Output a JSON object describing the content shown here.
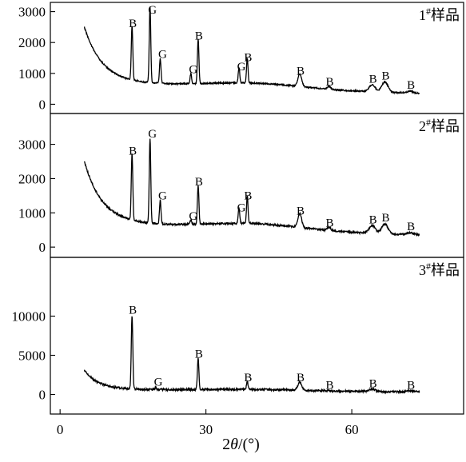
{
  "chart_data": {
    "type": "line",
    "x_axis": {
      "label_parts": [
        "2",
        "θ",
        "/(°)"
      ],
      "min": -2,
      "max": 83,
      "ticks": [
        0,
        30,
        60
      ],
      "tick_labels": [
        "0",
        "30",
        "60"
      ]
    },
    "panels": [
      {
        "sample_label": "1#样品",
        "ylim": [
          -300,
          3300
        ],
        "yticks": [
          0,
          1000,
          2000,
          3000
        ],
        "ytick_labels": [
          "0",
          "1000",
          "2000",
          "3000"
        ],
        "baseline": {
          "start_x": 5,
          "start_y": 2450,
          "end_x": 74,
          "end_y": 200,
          "floor": 700,
          "decay": 0.28
        },
        "peaks": [
          {
            "x": 14.8,
            "y": 2450,
            "label": "B"
          },
          {
            "x": 18.5,
            "y": 3150,
            "label": "G"
          },
          {
            "x": 20.6,
            "y": 1450,
            "label": "G"
          },
          {
            "x": 26.9,
            "y": 950,
            "label": "G"
          },
          {
            "x": 28.4,
            "y": 2050,
            "label": "B"
          },
          {
            "x": 36.8,
            "y": 1050,
            "label": "G"
          },
          {
            "x": 38.5,
            "y": 1350,
            "label": "B"
          },
          {
            "x": 49.3,
            "y": 900,
            "label": "B"
          },
          {
            "x": 55.3,
            "y": 550,
            "label": "B"
          },
          {
            "x": 64.2,
            "y": 650,
            "label": "B"
          },
          {
            "x": 66.8,
            "y": 750,
            "label": "B"
          },
          {
            "x": 72.0,
            "y": 450,
            "label": "B"
          }
        ]
      },
      {
        "sample_label": "2#样品",
        "ylim": [
          -300,
          3900
        ],
        "yticks": [
          0,
          1000,
          2000,
          3000
        ],
        "ytick_labels": [
          "0",
          "1000",
          "2000",
          "3000"
        ],
        "baseline": {
          "start_x": 5,
          "start_y": 2450,
          "end_x": 74,
          "end_y": 200,
          "floor": 700,
          "decay": 0.28
        },
        "peaks": [
          {
            "x": 14.8,
            "y": 2650,
            "label": "B"
          },
          {
            "x": 18.5,
            "y": 3150,
            "label": "G"
          },
          {
            "x": 20.6,
            "y": 1350,
            "label": "G"
          },
          {
            "x": 26.9,
            "y": 750,
            "label": "G"
          },
          {
            "x": 28.4,
            "y": 1750,
            "label": "B"
          },
          {
            "x": 36.8,
            "y": 1000,
            "label": "G"
          },
          {
            "x": 38.5,
            "y": 1350,
            "label": "B"
          },
          {
            "x": 49.3,
            "y": 900,
            "label": "B"
          },
          {
            "x": 55.3,
            "y": 550,
            "label": "B"
          },
          {
            "x": 64.2,
            "y": 650,
            "label": "B"
          },
          {
            "x": 66.8,
            "y": 700,
            "label": "B"
          },
          {
            "x": 72.0,
            "y": 450,
            "label": "B"
          }
        ]
      },
      {
        "sample_label": "3#样品",
        "ylim": [
          -2500,
          17500
        ],
        "yticks": [
          0,
          5000,
          10000
        ],
        "ytick_labels": [
          "0",
          "5000",
          "10000"
        ],
        "baseline": {
          "start_x": 5,
          "start_y": 3000,
          "end_x": 74,
          "end_y": 150,
          "floor": 650,
          "decay": 0.35
        },
        "peaks": [
          {
            "x": 14.8,
            "y": 10100,
            "label": "B"
          },
          {
            "x": 19.7,
            "y": 900,
            "label": "G"
          },
          {
            "x": 28.4,
            "y": 4500,
            "label": "B"
          },
          {
            "x": 38.5,
            "y": 1500,
            "label": "B"
          },
          {
            "x": 49.3,
            "y": 1500,
            "label": "B"
          },
          {
            "x": 55.3,
            "y": 500,
            "label": "B"
          },
          {
            "x": 64.2,
            "y": 700,
            "label": "B"
          },
          {
            "x": 72.0,
            "y": 500,
            "label": "B"
          }
        ]
      }
    ]
  }
}
